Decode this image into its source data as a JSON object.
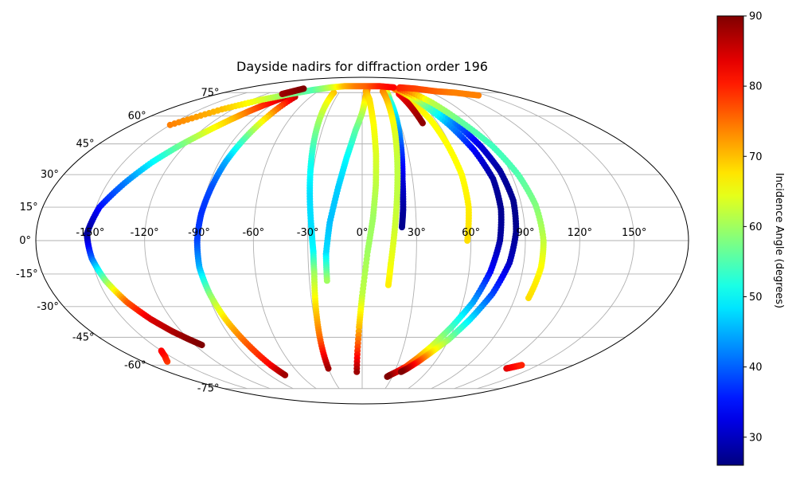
{
  "chart_data": {
    "type": "scatter",
    "projection": "mollweide",
    "title": "Dayside nadirs for diffraction order 196",
    "x_axis": {
      "ticks": [
        -150,
        -120,
        -90,
        -60,
        -30,
        0,
        30,
        60,
        90,
        120,
        150
      ],
      "tick_labels": [
        "-150°",
        "-120°",
        "-90°",
        "-60°",
        "-30°",
        "0°",
        "30°",
        "60°",
        "90°",
        "120°",
        "150°"
      ]
    },
    "y_axis": {
      "ticks": [
        -75,
        -60,
        -45,
        -30,
        -15,
        0,
        15,
        30,
        45,
        60,
        75
      ],
      "tick_labels": [
        "-75°",
        "-60°",
        "-45°",
        "-30°",
        "-15°",
        "0°",
        "15°",
        "30°",
        "45°",
        "60°",
        "75°"
      ]
    },
    "grid": true,
    "colorbar": {
      "label": "Incidence Angle (degrees)",
      "colormap": "jet",
      "range": [
        26,
        90
      ],
      "ticks": [
        30,
        40,
        50,
        60,
        70,
        80,
        90
      ],
      "tick_labels": [
        "30",
        "40",
        "50",
        "60",
        "70",
        "80",
        "90"
      ]
    },
    "tracks": [
      {
        "segments": [
          {
            "lon": [
              -89,
              -95,
              -102,
              -108,
              -116,
              -124,
              -132,
              -140,
              -148,
              -152
            ],
            "lat": [
              72,
              68,
              63,
              58,
              51,
              44,
              36,
              26,
              15,
              3
            ],
            "inc": [
              86,
              82,
              76,
              70,
              64,
              57,
              50,
              42,
              35,
              27
            ]
          },
          {
            "lon": [
              -152,
              -150,
              -146,
              -140,
              -133,
              -126,
              -120,
              -115
            ],
            "lat": [
              3,
              -8,
              -18,
              -28,
              -36,
              -42,
              -46,
              -49
            ],
            "inc": [
              27,
              40,
              58,
              76,
              84,
              87,
              89,
              90
            ]
          }
        ]
      },
      {
        "segments": [
          {
            "lon": [
              -78,
              -80,
              -83,
              -86,
              -88,
              -90,
              -91
            ],
            "lat": [
              72,
              60,
              48,
              36,
              24,
              12,
              0
            ],
            "inc": [
              86,
              70,
              56,
              45,
              39,
              37,
              38
            ]
          },
          {
            "lon": [
              -91,
              -91,
              -89,
              -86,
              -82,
              -78,
              -75
            ],
            "lat": [
              0,
              -12,
              -24,
              -36,
              -48,
              -60,
              -66
            ],
            "inc": [
              38,
              45,
              58,
              68,
              76,
              82,
              88
            ]
          }
        ]
      },
      {
        "segments": [
          {
            "lon": [
              -37,
              -36,
              -34,
              -32,
              -30,
              -28,
              -27
            ],
            "lat": [
              75,
              65,
              50,
              35,
              20,
              5,
              -5
            ],
            "inc": [
              70,
              64,
              57,
              51,
              48,
              48,
              50
            ]
          },
          {
            "lon": [
              -27,
              -27,
              -28,
              -29,
              -30
            ],
            "lat": [
              -5,
              -15,
              -30,
              -45,
              -62
            ],
            "inc": [
              50,
              60,
              68,
              75,
              88
            ]
          }
        ]
      },
      {
        "segments": [
          {
            "lon": [
              8,
              4,
              0,
              -5,
              -10,
              -14,
              -18,
              -20,
              -20
            ],
            "lat": [
              78,
              72,
              62,
              52,
              38,
              24,
              8,
              -6,
              -18
            ],
            "inc": [
              76,
              70,
              62,
              56,
              50,
              47,
              46,
              48,
              60
            ]
          }
        ]
      },
      {
        "segments": [
          {
            "lon": [
              5,
              8,
              9,
              9,
              8,
              6,
              3,
              0,
              -2,
              -5
            ],
            "lat": [
              76,
              70,
              55,
              40,
              25,
              10,
              -5,
              -25,
              -40,
              -64
            ],
            "inc": [
              72,
              68,
              66,
              64,
              62,
              60,
              60,
              62,
              70,
              88
            ]
          }
        ]
      },
      {
        "segments": [
          {
            "lon": [
              34,
              30,
              28,
              26,
              24,
              23,
              22
            ],
            "lat": [
              78,
              70,
              56,
              42,
              28,
              14,
              6
            ],
            "inc": [
              76,
              54,
              46,
              38,
              32,
              28,
              27
            ]
          },
          {
            "lon": [
              28,
              26,
              24,
              22,
              20,
              18,
              16,
              15
            ],
            "lat": [
              76,
              65,
              50,
              35,
              20,
              5,
              -10,
              -20
            ],
            "inc": [
              74,
              68,
              64,
              62,
              62,
              63,
              65,
              67
            ]
          }
        ]
      },
      {
        "segments": [
          {
            "lon": [
              48,
              52,
              56,
              58,
              60,
              60,
              58
            ],
            "lat": [
              78,
              70,
              58,
              45,
              30,
              15,
              0
            ],
            "inc": [
              72,
              68,
              66,
              66,
              66,
              67,
              68
            ]
          },
          {
            "lon": [
              46,
              47,
              48
            ],
            "lat": [
              74,
              65,
              56
            ],
            "inc": [
              82,
              86,
              89
            ]
          }
        ]
      },
      {
        "segments": [
          {
            "lon": [
              50,
              60,
              68,
              74,
              78,
              78,
              76,
              72,
              66,
              58,
              50,
              44,
              38,
              32,
              27,
              25
            ],
            "lat": [
              78,
              68,
              55,
              42,
              28,
              14,
              0,
              -14,
              -28,
              -40,
              -50,
              -56,
              -61,
              -64,
              -66,
              -67
            ],
            "inc": [
              76,
              60,
              44,
              34,
              28,
              27,
              28,
              34,
              44,
              54,
              64,
              72,
              78,
              84,
              88,
              90
            ]
          }
        ]
      },
      {
        "segments": [
          {
            "lon": [
              56,
              66,
              74,
              80,
              84,
              86,
              85,
              82,
              76,
              68,
              60,
              52,
              46,
              40,
              36
            ],
            "lat": [
              78,
              68,
              56,
              44,
              32,
              18,
              4,
              -10,
              -24,
              -36,
              -46,
              -53,
              -58,
              -62,
              -64
            ],
            "inc": [
              80,
              58,
              42,
              32,
              28,
              27,
              27,
              30,
              38,
              48,
              58,
              68,
              78,
              86,
              90
            ]
          }
        ]
      },
      {
        "segments": [
          {
            "lon": [
              62,
              72,
              80,
              88,
              94,
              98,
              100,
              100,
              98
            ],
            "lat": [
              78,
              68,
              56,
              44,
              30,
              16,
              0,
              -12,
              -26
            ],
            "inc": [
              78,
              62,
              56,
              54,
              55,
              58,
              62,
              66,
              68
            ]
          }
        ]
      },
      {
        "segments": [
          {
            "lon": [
              60,
              80,
              100,
              120,
              140
            ],
            "lat": [
              79,
              78,
              76,
              75,
              73
            ],
            "inc": [
              80,
              78,
              76,
              74,
              74
            ]
          }
        ]
      },
      {
        "segments": [
          {
            "lon": [
              -150,
              -130,
              -110,
              -90,
              -70,
              -50,
              -30,
              -10,
              10,
              30,
              50
            ],
            "lat": [
              55,
              64,
              70,
              74,
              77,
              79,
              80,
              80,
              80,
              80,
              79
            ],
            "inc": [
              74,
              70,
              64,
              58,
              55,
              62,
              70,
              74,
              76,
              80,
              82
            ]
          }
        ]
      },
      {
        "segments": [
          {
            "lon": [
              -100,
              -94,
              -88
            ],
            "lat": [
              74,
              76,
              78
            ],
            "inc": [
              88,
              89,
              90
            ]
          }
        ]
      },
      {
        "segments": [
          {
            "lon": [
              -160,
              -154,
              -150
            ],
            "lat": [
              -58,
              -55,
              -52
            ],
            "inc": [
              78,
              80,
              82
            ]
          }
        ]
      },
      {
        "segments": [
          {
            "lon": [
              128,
              132,
              136
            ],
            "lat": [
              -62,
              -61,
              -60
            ],
            "inc": [
              84,
              82,
              80
            ]
          }
        ]
      }
    ]
  }
}
